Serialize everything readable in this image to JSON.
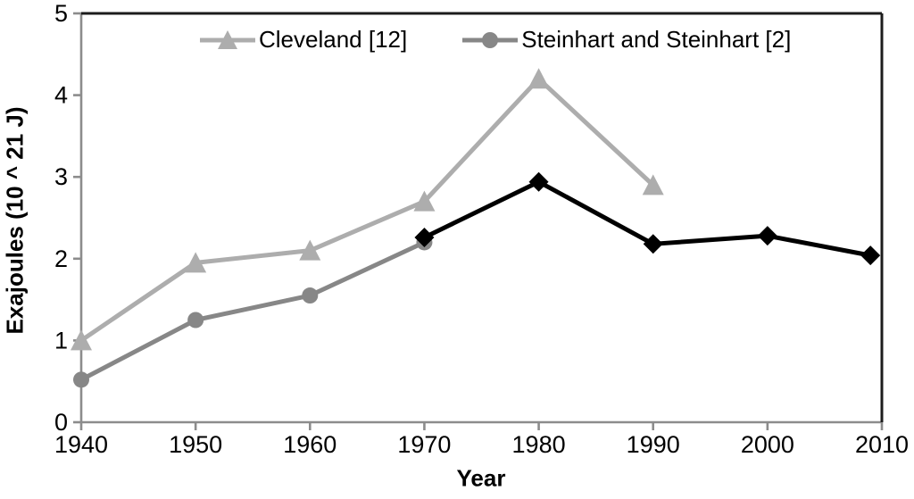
{
  "chart_data": {
    "type": "line",
    "title": "",
    "xlabel": "Year",
    "ylabel": "Exajoules (10 ^ 21 J)",
    "xlim": [
      1940,
      2010
    ],
    "ylim": [
      0,
      5
    ],
    "xticks": [
      1940,
      1950,
      1960,
      1970,
      1980,
      1990,
      2000,
      2010
    ],
    "yticks": [
      0,
      1,
      2,
      3,
      4,
      5
    ],
    "grid": false,
    "legend_position": "top-inside",
    "colors": {
      "cleveland": "#adadad",
      "steinhart": "#878787",
      "unlabeled_black": "#000000",
      "axis_line": "#8c8c8c",
      "plot_border": "#1c1c1c",
      "text": "#000000"
    },
    "series": [
      {
        "name": "Cleveland [12]",
        "marker": "triangle",
        "color": "#adadad",
        "in_legend": true,
        "points": [
          [
            1940,
            1.0
          ],
          [
            1950,
            1.95
          ],
          [
            1960,
            2.1
          ],
          [
            1970,
            2.7
          ],
          [
            1980,
            4.2
          ],
          [
            1990,
            2.9
          ]
        ]
      },
      {
        "name": "Steinhart and Steinhart [2]",
        "marker": "circle",
        "color": "#878787",
        "in_legend": true,
        "points": [
          [
            1940,
            0.52
          ],
          [
            1950,
            1.25
          ],
          [
            1960,
            1.55
          ],
          [
            1970,
            2.2
          ]
        ]
      },
      {
        "name": "",
        "marker": "diamond",
        "color": "#000000",
        "in_legend": false,
        "points": [
          [
            1970,
            2.26
          ],
          [
            1980,
            2.94
          ],
          [
            1990,
            2.18
          ],
          [
            2000,
            2.28
          ],
          [
            2009,
            2.04
          ]
        ]
      }
    ]
  }
}
